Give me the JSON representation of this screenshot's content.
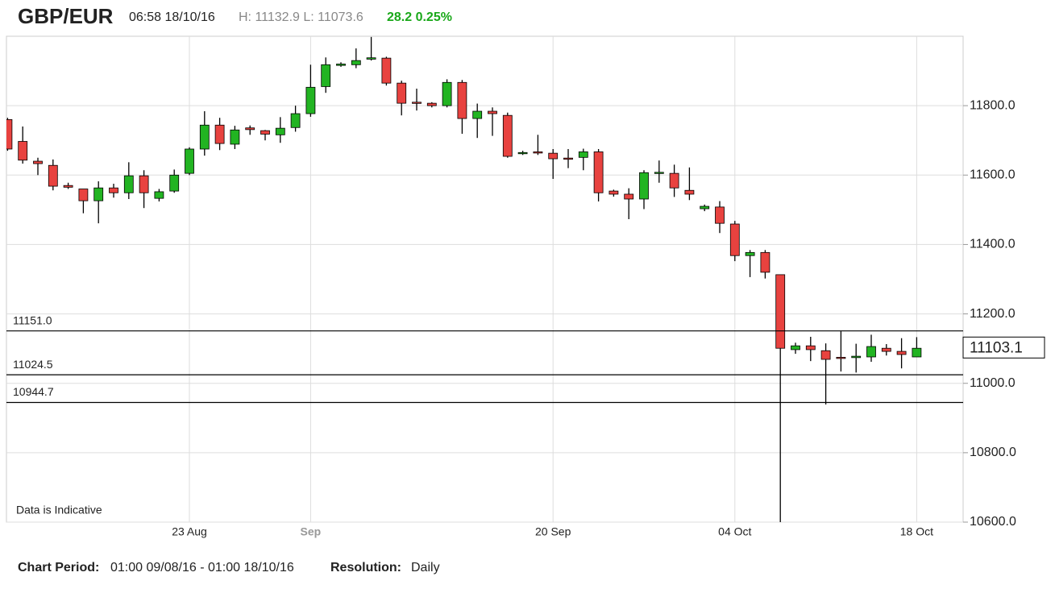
{
  "header": {
    "symbol": "GBP/EUR",
    "time": "06:58 18/10/16",
    "range": "H: 11132.9 L: 11073.6",
    "change": "28.2 0.25%"
  },
  "chart_data": {
    "type": "candlestick",
    "note": "Data is Indicative",
    "categories": [
      null,
      null,
      null,
      null,
      null,
      null,
      null,
      null,
      null,
      null,
      null,
      null,
      "23 Aug",
      null,
      null,
      null,
      null,
      null,
      null,
      null,
      "Sep",
      null,
      null,
      null,
      null,
      null,
      null,
      null,
      null,
      null,
      null,
      null,
      null,
      null,
      null,
      null,
      "20 Sep",
      null,
      null,
      null,
      null,
      null,
      null,
      null,
      null,
      null,
      null,
      null,
      "04 Oct",
      null,
      null,
      null,
      null,
      null,
      null,
      null,
      null,
      null,
      null,
      null,
      "18 Oct"
    ],
    "open": [
      11760,
      11697,
      11640,
      11628,
      11570,
      11560,
      11526,
      11563,
      11549,
      11598,
      11533,
      11554,
      11605,
      11675,
      11744,
      11689,
      11736,
      11728,
      11716,
      11737,
      11777,
      11855,
      11916,
      11918,
      11934,
      11937,
      11865,
      11810,
      11807,
      11800,
      11867,
      11763,
      11784,
      11772,
      11663,
      11667,
      11663,
      11649,
      11651,
      11667,
      11554,
      11545,
      11531,
      11607,
      11605,
      11556,
      11503,
      11508,
      11459,
      11368,
      11377,
      11313,
      11097,
      11108,
      11094,
      11075,
      11074,
      11076,
      11101,
      11092,
      11076
    ],
    "high": [
      11765,
      11740,
      11650,
      11645,
      11578,
      11560,
      11582,
      11575,
      11637,
      11614,
      11560,
      11616,
      11680,
      11784,
      11765,
      11742,
      11743,
      11730,
      11767,
      11800,
      11918,
      11939,
      11925,
      11965,
      11998,
      11941,
      11872,
      11849,
      11810,
      11876,
      11874,
      11806,
      11795,
      11780,
      11670,
      11716,
      11675,
      11675,
      11676,
      11675,
      11558,
      11562,
      11614,
      11642,
      11630,
      11622,
      11515,
      11525,
      11468,
      11384,
      11384,
      11313,
      11117,
      11134,
      11115,
      11150,
      11114,
      11140,
      11113,
      11130,
      11133
    ],
    "low": [
      11670,
      11633,
      11600,
      11556,
      11560,
      11490,
      11461,
      11535,
      11531,
      11505,
      11524,
      11549,
      11600,
      11656,
      11672,
      11675,
      11716,
      11700,
      11693,
      11725,
      11768,
      11837,
      11912,
      11908,
      11930,
      11858,
      11772,
      11786,
      11795,
      11795,
      11719,
      11707,
      11713,
      11650,
      11658,
      11658,
      11589,
      11620,
      11614,
      11524,
      11538,
      11473,
      11502,
      11578,
      11537,
      11528,
      11496,
      11433,
      11352,
      11306,
      11302,
      10550,
      11085,
      11064,
      10939,
      11034,
      11031,
      11062,
      11080,
      11043,
      11076
    ],
    "close": [
      11675,
      11643,
      11633,
      11568,
      11565,
      11526,
      11563,
      11549,
      11598,
      11549,
      11552,
      11600,
      11675,
      11744,
      11691,
      11730,
      11731,
      11718,
      11735,
      11777,
      11853,
      11918,
      11920,
      11930,
      11938,
      11865,
      11807,
      11808,
      11800,
      11867,
      11763,
      11784,
      11777,
      11654,
      11665,
      11665,
      11647,
      11646,
      11667,
      11549,
      11545,
      11531,
      11607,
      11608,
      11563,
      11545,
      11510,
      11461,
      11368,
      11377,
      11320,
      11101,
      11108,
      11097,
      11069,
      11072,
      11078,
      11106,
      11092,
      11083,
      11101
    ],
    "up_color": "#22b422",
    "down_color": "#e8423f",
    "ylim": [
      10600,
      12000
    ],
    "yticks": [
      {
        "value": 10600,
        "label": "10600.0"
      },
      {
        "value": 10800,
        "label": "10800.0"
      },
      {
        "value": 11000,
        "label": "11000.0"
      },
      {
        "value": 11200,
        "label": "11200.0"
      },
      {
        "value": 11400,
        "label": "11400.0"
      },
      {
        "value": 11600,
        "label": "11600.0"
      },
      {
        "value": 11800,
        "label": "11800.0"
      }
    ],
    "levels": [
      {
        "value": 11151,
        "label": "11151.0"
      },
      {
        "value": 11024.5,
        "label": "11024.5"
      },
      {
        "value": 10944.7,
        "label": "10944.7"
      }
    ],
    "last_price": 11103.1,
    "grid": true
  },
  "footer": {
    "period_label": "Chart Period:",
    "period": "01:00 09/08/16 - 01:00 18/10/16",
    "resolution_label": "Resolution:",
    "resolution": "Daily"
  }
}
